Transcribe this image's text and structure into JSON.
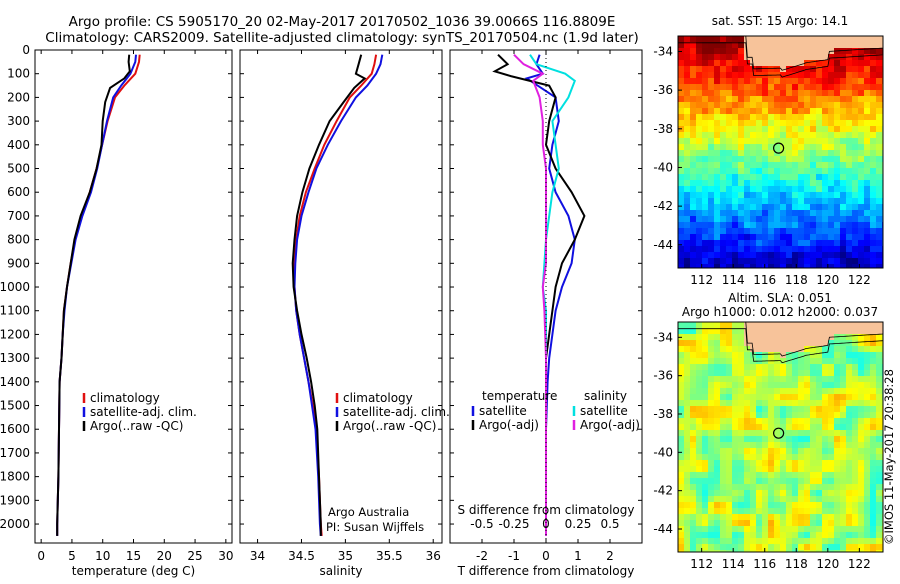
{
  "header": {
    "line1": "Argo profile: CS 5905170_20 02-May-2017 20170502_1036 39.0066S 116.8809E",
    "line2": "Climatology: CARS2009. Satellite-adjusted climatology: synTS_20170504.nc (1.9d later)"
  },
  "side_stamp": "©IMOS 11-May-2017 20:38:28",
  "credits": {
    "org": "Argo Australia",
    "pi": "PI: Susan Wijffels"
  },
  "colors": {
    "climatology": "#e01010",
    "satellite": "#1010e0",
    "argo": "#000000",
    "sat_salinity": "#00e0e0",
    "argo_salinity": "#e020e0",
    "land": "#f7c39a"
  },
  "chart_data": [
    {
      "type": "line",
      "id": "temperature",
      "xlabel": "temperature (deg C)",
      "xlim": [
        -1,
        31
      ],
      "xticks": [
        0,
        5,
        10,
        15,
        20,
        25,
        30
      ],
      "ylim": [
        2080,
        0
      ],
      "yticks": [
        0,
        100,
        200,
        300,
        400,
        500,
        600,
        700,
        800,
        900,
        1000,
        1100,
        1200,
        1300,
        1400,
        1500,
        1600,
        1700,
        1800,
        1900,
        2000
      ],
      "legend": [
        "climatology",
        "satellite-adj. clim.",
        "Argo(..raw -QC)"
      ],
      "series": [
        {
          "name": "climatology",
          "color": "#e01010",
          "x": [
            16.0,
            15.9,
            15.3,
            13.5,
            12.0,
            10.8,
            9.9,
            9.0,
            7.9,
            6.5,
            5.5,
            4.8,
            4.2,
            3.7,
            3.5,
            3.3,
            3.0,
            2.9,
            2.8,
            2.7,
            2.6,
            2.6
          ],
          "y": [
            20,
            50,
            100,
            150,
            200,
            300,
            400,
            500,
            600,
            700,
            800,
            900,
            1000,
            1100,
            1200,
            1300,
            1400,
            1600,
            1800,
            1900,
            2000,
            2050
          ]
        },
        {
          "name": "satellite-adj. clim.",
          "color": "#1010e0",
          "x": [
            15.4,
            15.3,
            14.5,
            13.0,
            11.7,
            10.7,
            9.9,
            9.1,
            8.1,
            6.7,
            5.6,
            4.9,
            4.2,
            3.8,
            3.5,
            3.3,
            3.0,
            2.9,
            2.8,
            2.7,
            2.6,
            2.6
          ],
          "y": [
            20,
            50,
            100,
            150,
            200,
            300,
            400,
            500,
            600,
            700,
            800,
            900,
            1000,
            1100,
            1200,
            1300,
            1400,
            1600,
            1800,
            1900,
            2000,
            2050
          ]
        },
        {
          "name": "Argo(..raw -QC)",
          "color": "#000000",
          "x": [
            14.3,
            14.2,
            14.4,
            13.5,
            11.2,
            10.4,
            10.0,
            9.8,
            9.0,
            7.9,
            6.4,
            5.4,
            4.8,
            4.2,
            3.7,
            3.5,
            3.3,
            3.0,
            2.9,
            2.8,
            2.7,
            2.6,
            2.6
          ],
          "y": [
            20,
            50,
            90,
            120,
            160,
            220,
            300,
            400,
            500,
            600,
            700,
            800,
            900,
            1000,
            1100,
            1200,
            1300,
            1400,
            1600,
            1800,
            1900,
            2000,
            2050
          ]
        }
      ]
    },
    {
      "type": "line",
      "id": "salinity",
      "xlabel": "salinity",
      "xlim": [
        33.8,
        36.1
      ],
      "xticks": [
        34,
        34.5,
        35,
        35.5,
        36
      ],
      "ylim": [
        2080,
        0
      ],
      "legend": [
        "climatology",
        "satellite-adj. clim.",
        "Argo(..raw -QC)"
      ],
      "series": [
        {
          "name": "climatology",
          "color": "#e01010",
          "x": [
            35.35,
            35.33,
            35.3,
            35.18,
            35.05,
            34.9,
            34.76,
            34.65,
            34.55,
            34.48,
            34.44,
            34.42,
            34.42,
            34.44,
            34.48,
            34.53,
            34.58,
            34.63,
            34.67,
            34.7,
            34.72,
            34.73
          ],
          "y": [
            20,
            60,
            100,
            150,
            200,
            300,
            400,
            500,
            600,
            700,
            800,
            900,
            1000,
            1100,
            1200,
            1300,
            1400,
            1500,
            1600,
            1800,
            2000,
            2050
          ]
        },
        {
          "name": "satellite-adj. clim.",
          "color": "#1010e0",
          "x": [
            35.42,
            35.4,
            35.35,
            35.25,
            35.12,
            34.95,
            34.8,
            34.67,
            34.58,
            34.5,
            34.45,
            34.43,
            34.42,
            34.44,
            34.48,
            34.53,
            34.58,
            34.62,
            34.66,
            34.69,
            34.71,
            34.72
          ],
          "y": [
            20,
            60,
            100,
            150,
            200,
            300,
            400,
            500,
            600,
            700,
            800,
            900,
            1000,
            1100,
            1200,
            1300,
            1400,
            1500,
            1600,
            1800,
            2000,
            2050
          ]
        },
        {
          "name": "Argo(..raw -QC)",
          "color": "#000000",
          "x": [
            35.18,
            35.15,
            35.12,
            35.22,
            35.1,
            34.98,
            34.82,
            34.7,
            34.59,
            34.51,
            34.45,
            34.42,
            34.4,
            34.41,
            34.45,
            34.5,
            34.56,
            34.61,
            34.65,
            34.68,
            34.7,
            34.72,
            34.72
          ],
          "y": [
            20,
            60,
            100,
            120,
            160,
            220,
            300,
            400,
            500,
            600,
            700,
            800,
            900,
            1000,
            1100,
            1200,
            1300,
            1400,
            1500,
            1600,
            1800,
            2000,
            2050
          ]
        }
      ]
    },
    {
      "type": "line",
      "id": "difference",
      "xlabel": "T difference from climatology",
      "xlabel_top": "S difference from climatology",
      "xlim": [
        -3,
        3
      ],
      "xticks": [
        -2,
        -1,
        0,
        1,
        2
      ],
      "xticks_s": [
        "-0.5",
        "-0.25",
        "0",
        "0.25",
        "0.5"
      ],
      "xticks_s_pos": [
        -2,
        -1,
        0,
        1,
        2
      ],
      "ylim": [
        2080,
        0
      ],
      "legend_headers": [
        "temperature",
        "salinity"
      ],
      "legend": [
        "satellite",
        "Argo(-adj)",
        "satellite",
        "Argo(-adj)"
      ],
      "series": [
        {
          "name": "satellite",
          "group": "temperature",
          "color": "#1010e0",
          "x": [
            -0.2,
            -0.3,
            -0.1,
            -0.6,
            0.3,
            0.4,
            0.2,
            0.1,
            0.3,
            0.7,
            0.9,
            0.8,
            0.5,
            0.3,
            0.2,
            0.1,
            0.05,
            0.0,
            0.0,
            0.0,
            0.0
          ],
          "y": [
            20,
            60,
            100,
            120,
            200,
            300,
            400,
            500,
            600,
            700,
            800,
            900,
            1000,
            1100,
            1200,
            1300,
            1400,
            1600,
            1800,
            2000,
            2050
          ]
        },
        {
          "name": "Argo(-adj)",
          "group": "temperature",
          "color": "#000000",
          "x": [
            -1.5,
            -1.2,
            -1.6,
            -1.1,
            0.1,
            0.3,
            0.1,
            0.0,
            0.3,
            0.8,
            1.2,
            0.9,
            0.5,
            0.3,
            0.2,
            0.1,
            0.0,
            0.0,
            0.0,
            0.0,
            0.0,
            0.0
          ],
          "y": [
            20,
            60,
            90,
            110,
            150,
            200,
            300,
            400,
            500,
            600,
            700,
            800,
            900,
            1000,
            1100,
            1200,
            1300,
            1400,
            1600,
            1800,
            2000,
            2050
          ]
        },
        {
          "name": "satellite",
          "group": "salinity",
          "color": "#00e0e0",
          "x": [
            -0.5,
            -0.3,
            0.6,
            0.9,
            0.7,
            0.2,
            0.3,
            0.4,
            0.2,
            0.1,
            0.0,
            -0.05,
            -0.1,
            0.0,
            0.0,
            0.0,
            0.0,
            0.0,
            0.0
          ],
          "y": [
            20,
            60,
            100,
            130,
            200,
            300,
            400,
            500,
            600,
            700,
            800,
            900,
            1000,
            1100,
            1300,
            1500,
            1700,
            1900,
            2050
          ]
        },
        {
          "name": "Argo(-adj)",
          "group": "salinity",
          "color": "#e020e0",
          "x": [
            -1.0,
            -0.7,
            -0.1,
            -0.4,
            -0.2,
            -0.1,
            -0.1,
            0.0,
            0.0,
            0.0,
            0.0,
            0.0,
            -0.1,
            -0.05,
            0.0,
            0.0,
            0.0,
            0.0,
            0.0
          ],
          "y": [
            20,
            60,
            100,
            130,
            200,
            300,
            400,
            500,
            600,
            700,
            800,
            900,
            1000,
            1100,
            1300,
            1500,
            1700,
            1900,
            2050
          ]
        }
      ]
    },
    {
      "type": "heatmap",
      "id": "sst_map",
      "title": "sat. SST: 15 Argo: 14.1",
      "xlim": [
        110.5,
        123.5
      ],
      "ylim": [
        -45.2,
        -33.2
      ],
      "xticks": [
        112,
        114,
        116,
        118,
        120,
        122
      ],
      "yticks": [
        -34,
        -36,
        -38,
        -40,
        -42,
        -44
      ],
      "marker": {
        "lon": 116.88,
        "lat": -39.0
      }
    },
    {
      "type": "heatmap",
      "id": "sla_map",
      "title": "Altim. SLA: 0.051",
      "subtitle": "Argo h1000: 0.012 h2000: 0.037",
      "xlim": [
        110.5,
        123.5
      ],
      "ylim": [
        -45.2,
        -33.2
      ],
      "xticks": [
        112,
        114,
        116,
        118,
        120,
        122
      ],
      "yticks": [
        -34,
        -36,
        -38,
        -40,
        -42,
        -44
      ],
      "marker": {
        "lon": 116.88,
        "lat": -39.0
      }
    }
  ]
}
